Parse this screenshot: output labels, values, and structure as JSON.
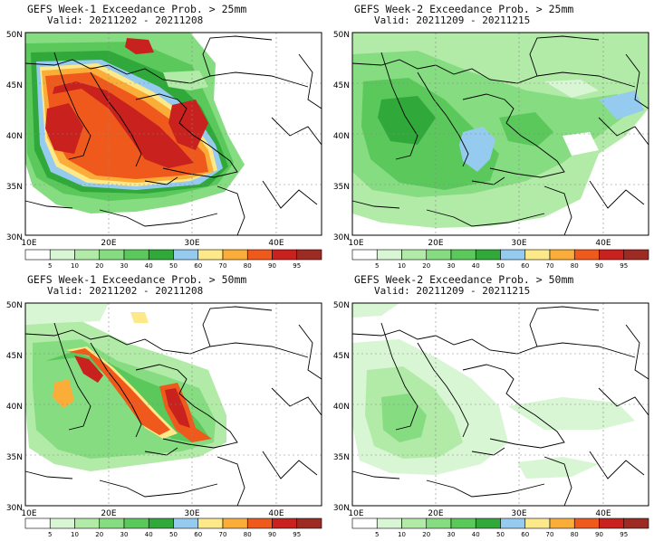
{
  "panels": [
    {
      "title": "GEFS Week-1 Exceedance Prob. > 25mm",
      "valid": "Valid: 20211202 - 20211208"
    },
    {
      "title": "GEFS Week-2 Exceedance Prob. > 25mm",
      "valid": "Valid: 20211209 - 20211215"
    },
    {
      "title": "GEFS Week-1 Exceedance Prob. > 50mm",
      "valid": "Valid: 20211202 - 20211208"
    },
    {
      "title": "GEFS Week-2 Exceedance Prob. > 50mm",
      "valid": "Valid: 20211209 - 20211215"
    }
  ],
  "axes": {
    "lat_labels": [
      "50N",
      "45N",
      "40N",
      "35N",
      "30N"
    ],
    "lon_labels": [
      "10E",
      "20E",
      "30E",
      "40E"
    ]
  },
  "colorbar": {
    "labels": [
      "5",
      "10",
      "20",
      "30",
      "40",
      "50",
      "60",
      "70",
      "80",
      "90",
      "95"
    ],
    "colors": [
      "#ffffff",
      "#d8f5d4",
      "#b2eaa8",
      "#86dc80",
      "#5bc85c",
      "#30a83a",
      "#96cbf0",
      "#fde98a",
      "#fbad3a",
      "#ef5a1c",
      "#c8211e",
      "#9e2a24"
    ]
  }
}
